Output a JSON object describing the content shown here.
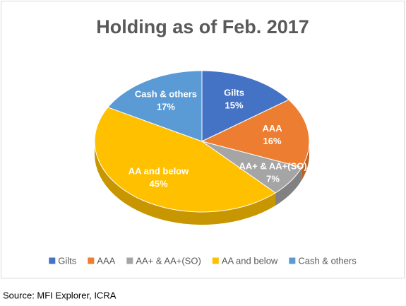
{
  "chart_data": {
    "type": "pie",
    "title": "Holding as of Feb. 2017",
    "categories": [
      "Gilts",
      "AAA",
      "AA+ & AA+(SO)",
      "AA and below",
      "Cash & others"
    ],
    "values": [
      15,
      16,
      7,
      45,
      17
    ],
    "value_labels": [
      "15%",
      "16%",
      "7%",
      "45%",
      "17%"
    ],
    "colors": [
      "#4472c4",
      "#ed7d31",
      "#a5a5a5",
      "#ffc000",
      "#5b9bd5"
    ],
    "legend": "bottom",
    "source": "Source: MFI Explorer, ICRA"
  }
}
